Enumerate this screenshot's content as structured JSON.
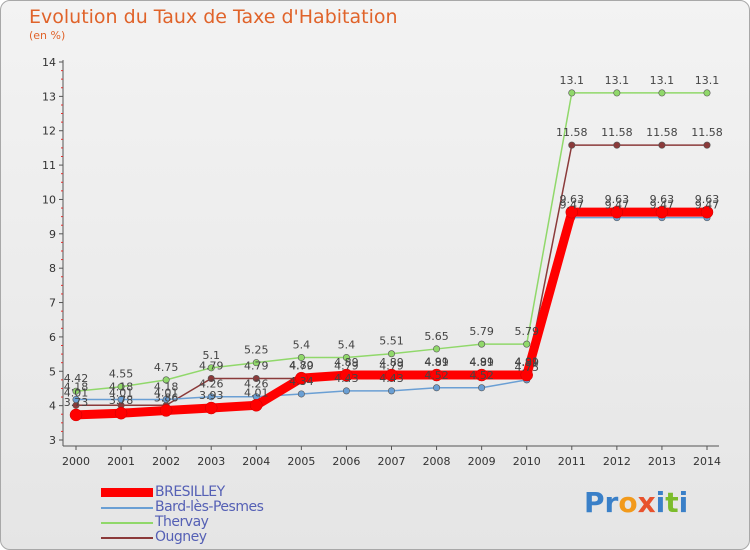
{
  "title": "Evolution du Taux de Taxe d'Habitation",
  "unit_label": "(en %)",
  "logo": {
    "text": "Proxiti",
    "letters": [
      "P",
      "r",
      "o",
      "x",
      "i",
      "t",
      "i"
    ],
    "colors": [
      "#3a80c8",
      "#3a80c8",
      "#f29a1b",
      "#e8522d",
      "#3a80c8",
      "#7cbc2c",
      "#3a80c8"
    ]
  },
  "chart_data": {
    "type": "line",
    "x": [
      "2000",
      "2001",
      "2002",
      "2003",
      "2004",
      "2005",
      "2006",
      "2007",
      "2008",
      "2009",
      "2010",
      "2011",
      "2012",
      "2013",
      "2014"
    ],
    "ylim": [
      3,
      14
    ],
    "yticks": [
      "3",
      "4",
      "5",
      "6",
      "7",
      "8",
      "9",
      "10",
      "11",
      "12",
      "13",
      "14"
    ],
    "grid": false,
    "legend_position": "bottom-left",
    "series": [
      {
        "name": "BRESILLEY",
        "color": "#ff0000",
        "values": [
          3.73,
          3.78,
          3.86,
          3.93,
          4.01,
          4.8,
          4.89,
          4.89,
          4.89,
          4.89,
          4.89,
          9.63,
          9.63,
          9.63,
          9.63
        ],
        "labels": [
          "3.73",
          "3.78",
          "3.86",
          "3.93",
          "4.01",
          "4.80",
          "4.89",
          "4.89",
          "4.89",
          "4.89",
          "4.89",
          "9.63",
          "9.63",
          "9.63",
          "9.63"
        ]
      },
      {
        "name": "Bard-lès-Pesmes",
        "color": "#6a9fd4",
        "values": [
          4.18,
          4.18,
          4.18,
          4.26,
          4.26,
          4.34,
          4.43,
          4.43,
          4.52,
          4.52,
          4.75,
          9.47,
          9.47,
          9.47,
          9.47
        ],
        "labels": [
          "4.18",
          "4.18",
          "4.18",
          "4.26",
          "4.26",
          "4.34",
          "4.43",
          "4.43",
          "4.52",
          "4.52",
          "4.75",
          "9.47",
          "9.47",
          "9.47",
          "9.47"
        ]
      },
      {
        "name": "Thervay",
        "color": "#90d86a",
        "values": [
          4.42,
          4.55,
          4.75,
          5.1,
          5.25,
          5.4,
          5.4,
          5.51,
          5.65,
          5.79,
          5.79,
          13.1,
          13.1,
          13.1,
          13.1
        ],
        "labels": [
          "4.42",
          "4.55",
          "4.75",
          "5.1",
          "5.25",
          "5.4",
          "5.4",
          "5.51",
          "5.65",
          "5.79",
          "5.79",
          "13.1",
          "13.1",
          "13.1",
          "13.1"
        ]
      },
      {
        "name": "Ougney",
        "color": "#8b3a3a",
        "values": [
          4.01,
          4.01,
          4.01,
          4.79,
          4.79,
          4.79,
          4.79,
          4.79,
          4.91,
          4.91,
          4.91,
          11.58,
          11.58,
          11.58,
          11.58
        ],
        "labels": [
          "4.01",
          "4.01",
          "4.01",
          "4.79",
          "4.79",
          "4.79",
          "4.79",
          "4.79",
          "4.91",
          "4.91",
          "4.91",
          "11.58",
          "11.58",
          "11.58",
          "11.58"
        ]
      }
    ]
  }
}
